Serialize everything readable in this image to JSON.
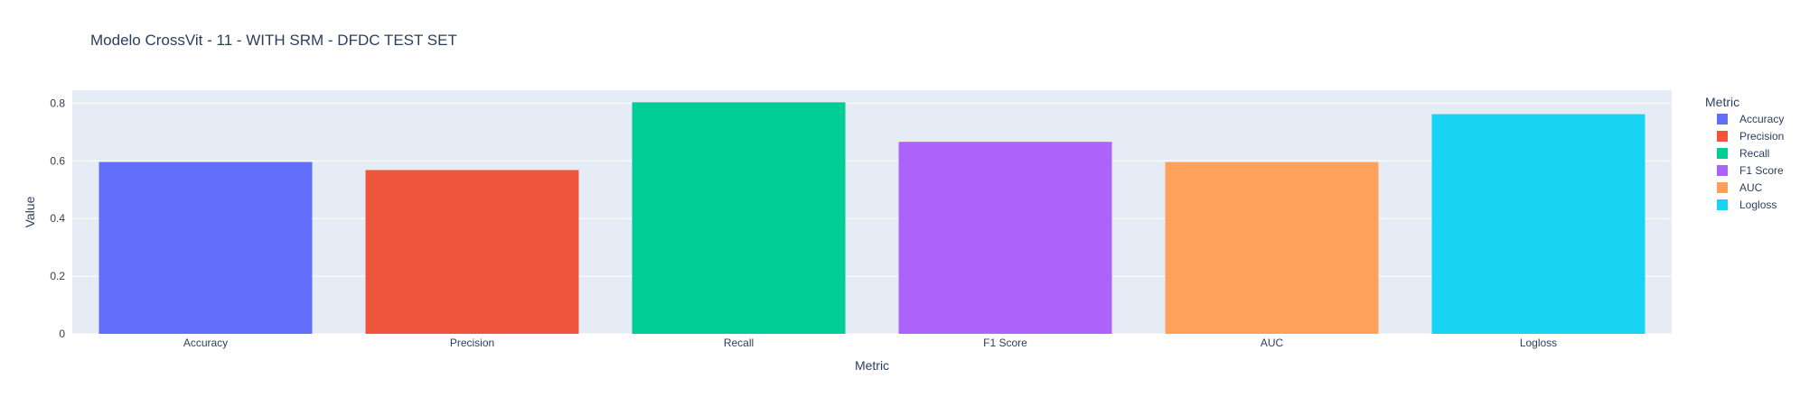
{
  "chart_data": {
    "type": "bar",
    "title": "Modelo CrossVit - 11 - WITH SRM - DFDC TEST SET",
    "xlabel": "Metric",
    "ylabel": "Value",
    "categories": [
      "Accuracy",
      "Precision",
      "Recall",
      "F1 Score",
      "AUC",
      "Logloss"
    ],
    "values": [
      0.596,
      0.568,
      0.803,
      0.666,
      0.596,
      0.762
    ],
    "colors": [
      "#636efa",
      "#ef553b",
      "#00cc96",
      "#ab63fa",
      "#ffa15a",
      "#19d3f3"
    ],
    "ylim": [
      0,
      0.845
    ],
    "yticks": [
      0,
      0.2,
      0.4,
      0.6,
      0.8
    ],
    "ytick_labels": [
      "0",
      "0.2",
      "0.4",
      "0.6",
      "0.8"
    ],
    "grid": true,
    "legend": {
      "title": "Metric",
      "placement": "right",
      "items": [
        "Accuracy",
        "Precision",
        "Recall",
        "F1 Score",
        "AUC",
        "Logloss"
      ]
    },
    "plot_background": "#e5ecf6",
    "text_color": "#2a3f5f"
  }
}
